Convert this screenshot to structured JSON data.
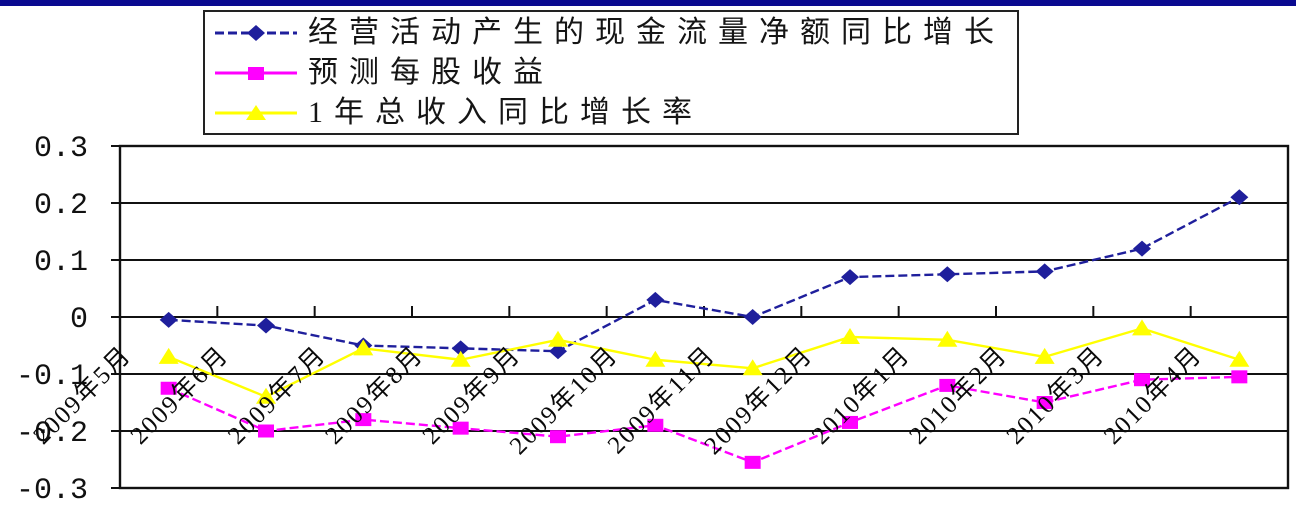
{
  "page": {
    "top_bar_color": "#0a0a90",
    "background_color": "#ffffff",
    "axis_color": "#111111"
  },
  "chart_data": {
    "type": "line",
    "title": "",
    "xlabel": "",
    "ylabel": "",
    "categories": [
      "2009年5月",
      "2009年6月",
      "2009年7月",
      "2009年8月",
      "2009年9月",
      "2009年10月",
      "2009年11月",
      "2009年12月",
      "2010年1月",
      "2010年2月",
      "2010年3月",
      "2010年4月"
    ],
    "series": [
      {
        "name": "经营活动产生的现金流量净额同比增长",
        "color": "#1f1f9c",
        "marker": "diamond",
        "line_style": "dashed",
        "values": [
          -0.005,
          -0.015,
          -0.05,
          -0.055,
          -0.06,
          0.03,
          0,
          0.07,
          0.075,
          0.08,
          0.12,
          0.21
        ]
      },
      {
        "name": "预测每股收益",
        "color": "#ff00ff",
        "marker": "square",
        "line_style": "dashed",
        "values": [
          -0.125,
          -0.2,
          -0.18,
          -0.195,
          -0.21,
          -0.19,
          -0.255,
          -0.185,
          -0.12,
          -0.15,
          -0.11,
          -0.105
        ]
      },
      {
        "name": "1年总收入同比增长率",
        "color": "#ffff00",
        "marker": "triangle",
        "line_style": "solid",
        "values": [
          -0.07,
          -0.14,
          -0.055,
          -0.075,
          -0.04,
          -0.075,
          -0.09,
          -0.035,
          -0.04,
          -0.07,
          -0.02,
          -0.075
        ]
      }
    ],
    "ylim": [
      -0.3,
      0.3
    ],
    "ytick_labels": [
      "0.3",
      "0.2",
      "0.1",
      "0",
      "-0.1",
      "-0.2",
      "-0.3"
    ],
    "grid": true,
    "legend_position": "top-left"
  }
}
